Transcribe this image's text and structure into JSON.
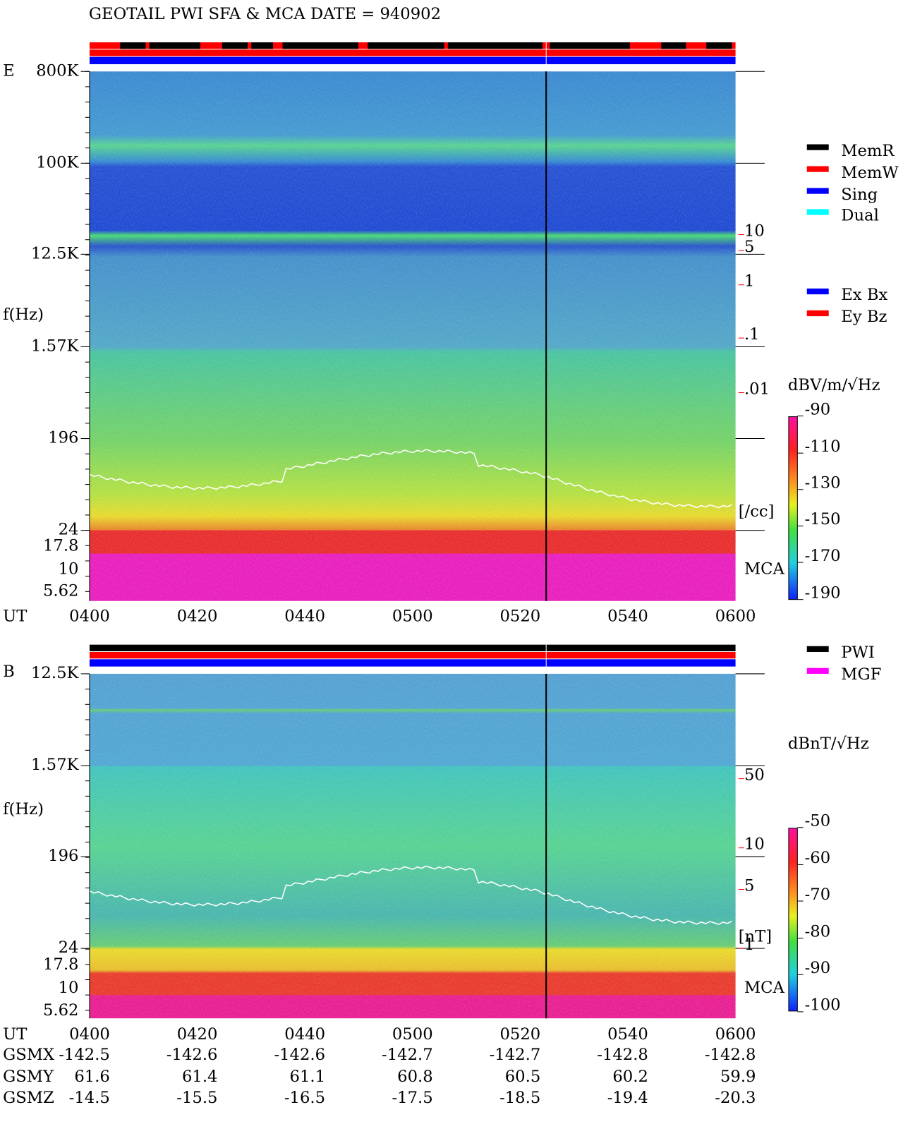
{
  "title": "GEOTAIL  PWI SFA & MCA   DATE = 940902",
  "panels": [
    {
      "label": "E",
      "freq_ticks": [
        "800K",
        "100K",
        "12.5K",
        "1.57K",
        "196",
        "24",
        "17.8",
        "10",
        "5.62"
      ],
      "y_axis_label": "f(Hz)",
      "right_ticks": [
        "10",
        "5",
        "1",
        ".1",
        ".01"
      ],
      "right_unit": "[/cc]",
      "mca_label": "MCA",
      "time_label": "UT",
      "times": [
        "0400",
        "0420",
        "0440",
        "0500",
        "0520",
        "0540",
        "0600"
      ],
      "legend_groups": [
        [
          {
            "name": "MemR",
            "color": "#000000",
            "text_color": "#000000"
          },
          {
            "name": "MemW",
            "color": "#ff0000",
            "text_color": "#ff0000"
          },
          {
            "name": "Sing",
            "color": "#0000ff",
            "text_color": "#0000ff"
          },
          {
            "name": "Dual",
            "color": "#00ffff",
            "text_color": "#00e0e0"
          }
        ],
        [
          {
            "name": "Ex Bx",
            "color": "#0000ff",
            "text_color": "#0000ff"
          },
          {
            "name": "Ey Bz",
            "color": "#ff0000",
            "text_color": "#ff0000"
          }
        ]
      ],
      "colorbar": {
        "unit": "dBV/m/√Hz",
        "ticks": [
          "-90",
          "-110",
          "-130",
          "-150",
          "-170",
          "-190"
        ]
      }
    },
    {
      "label": "B",
      "freq_ticks": [
        "12.5K",
        "1.57K",
        "196",
        "24",
        "17.8",
        "10",
        "5.62"
      ],
      "y_axis_label": "f(Hz)",
      "right_ticks": [
        "50",
        "10",
        "5",
        "1"
      ],
      "right_unit": "[nT]",
      "mca_label": "MCA",
      "time_label": "UT",
      "times": [
        "0400",
        "0420",
        "0440",
        "0500",
        "0520",
        "0540",
        "0600"
      ],
      "legend_groups": [
        [
          {
            "name": "PWI",
            "color": "#000000",
            "text_color": "#000000"
          },
          {
            "name": "MGF",
            "color": "#ff00ff",
            "text_color": "#ff00ff"
          }
        ]
      ],
      "colorbar": {
        "unit": "dBnT/√Hz",
        "ticks": [
          "-50",
          "-60",
          "-70",
          "-80",
          "-90",
          "-100"
        ]
      }
    }
  ],
  "orbit": [
    {
      "label": "GSMX",
      "values": [
        "-142.5",
        "-142.6",
        "-142.6",
        "-142.7",
        "-142.7",
        "-142.8",
        "-142.8"
      ]
    },
    {
      "label": "GSMY",
      "values": [
        "61.6",
        "61.4",
        "61.1",
        "60.8",
        "60.5",
        "60.2",
        "59.9"
      ]
    },
    {
      "label": "GSMZ",
      "values": [
        "-14.5",
        "-15.5",
        "-16.5",
        "-17.5",
        "-18.5",
        "-19.4",
        "-20.3"
      ]
    }
  ]
}
